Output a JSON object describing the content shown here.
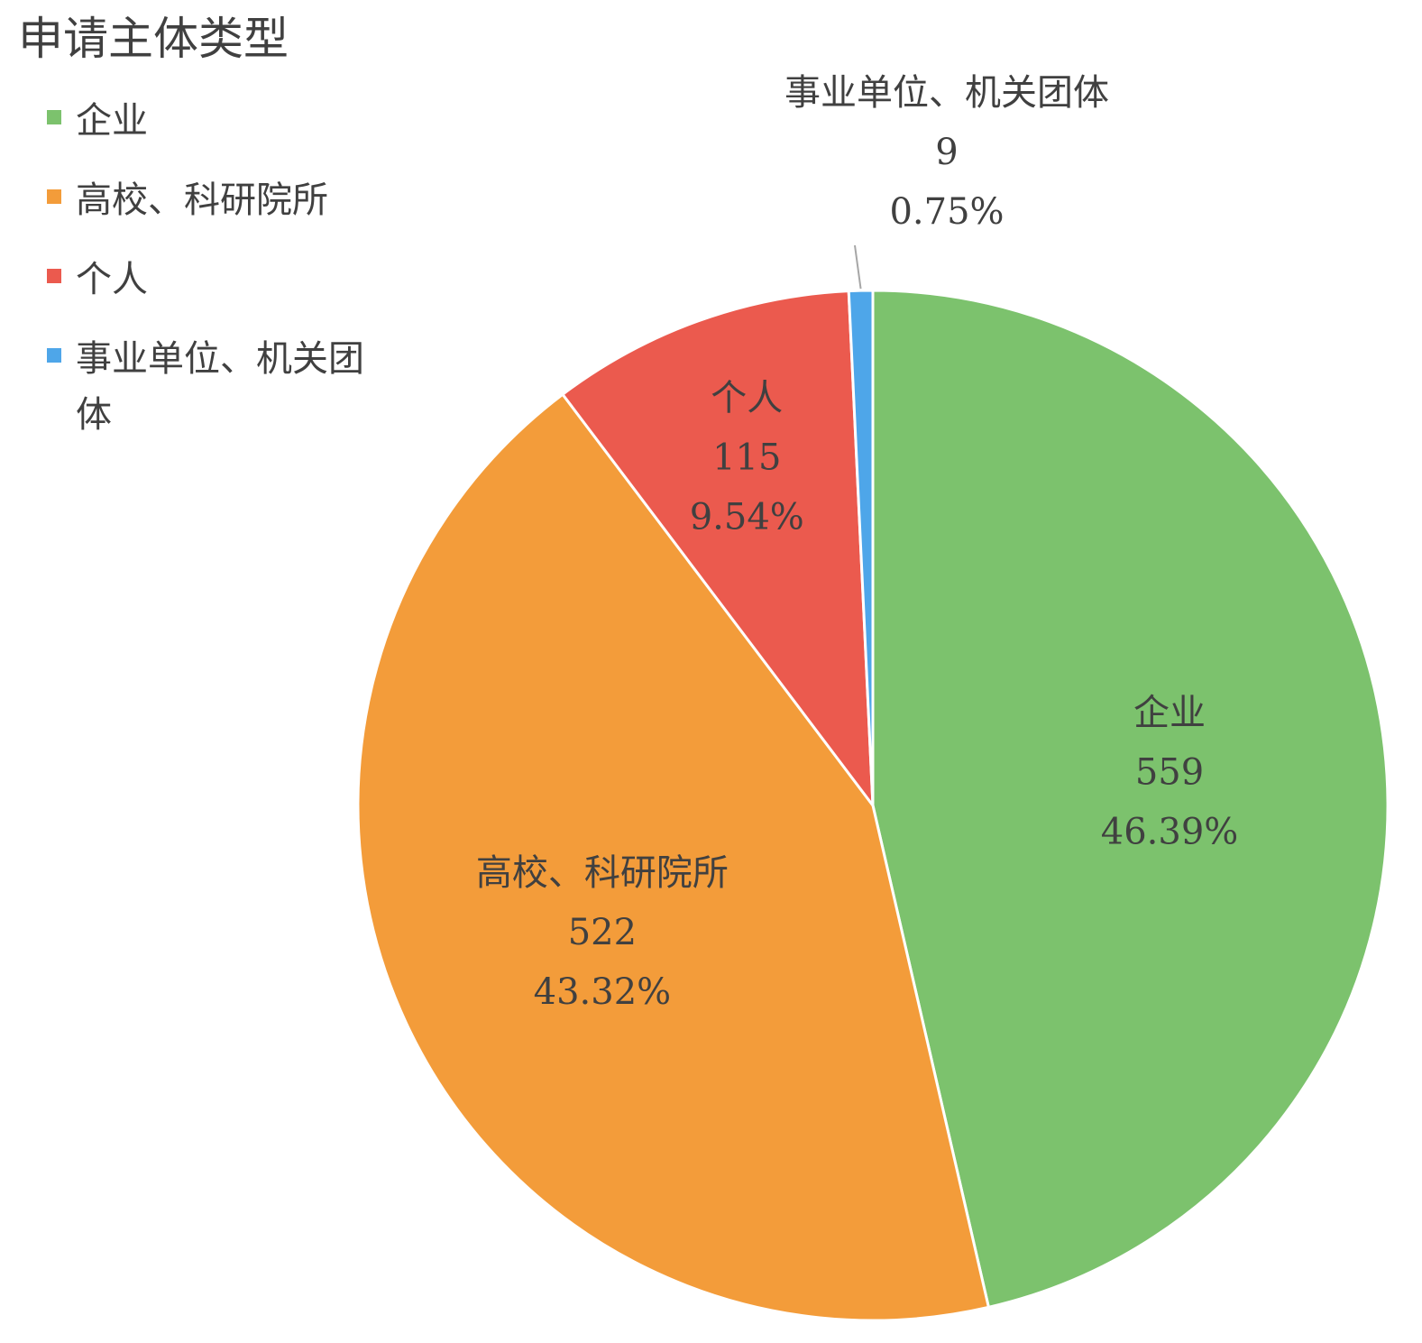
{
  "chart_data": {
    "type": "pie",
    "title": "申请主体类型",
    "legend_position": "top-left",
    "categories": [
      "企业",
      "高校、科研院所",
      "个人",
      "事业单位、机关团体"
    ],
    "values": [
      559,
      522,
      115,
      9
    ],
    "percentages": [
      "46.39%",
      "43.32%",
      "9.54%",
      "0.75%"
    ],
    "colors": [
      "#7cc26d",
      "#f39c3a",
      "#eb5a4e",
      "#4ea6e9"
    ],
    "legend_lines": [
      [
        "企业"
      ],
      [
        "高校、科研院所"
      ],
      [
        "个人"
      ],
      [
        "事业单位、机关团",
        "体"
      ]
    ]
  }
}
